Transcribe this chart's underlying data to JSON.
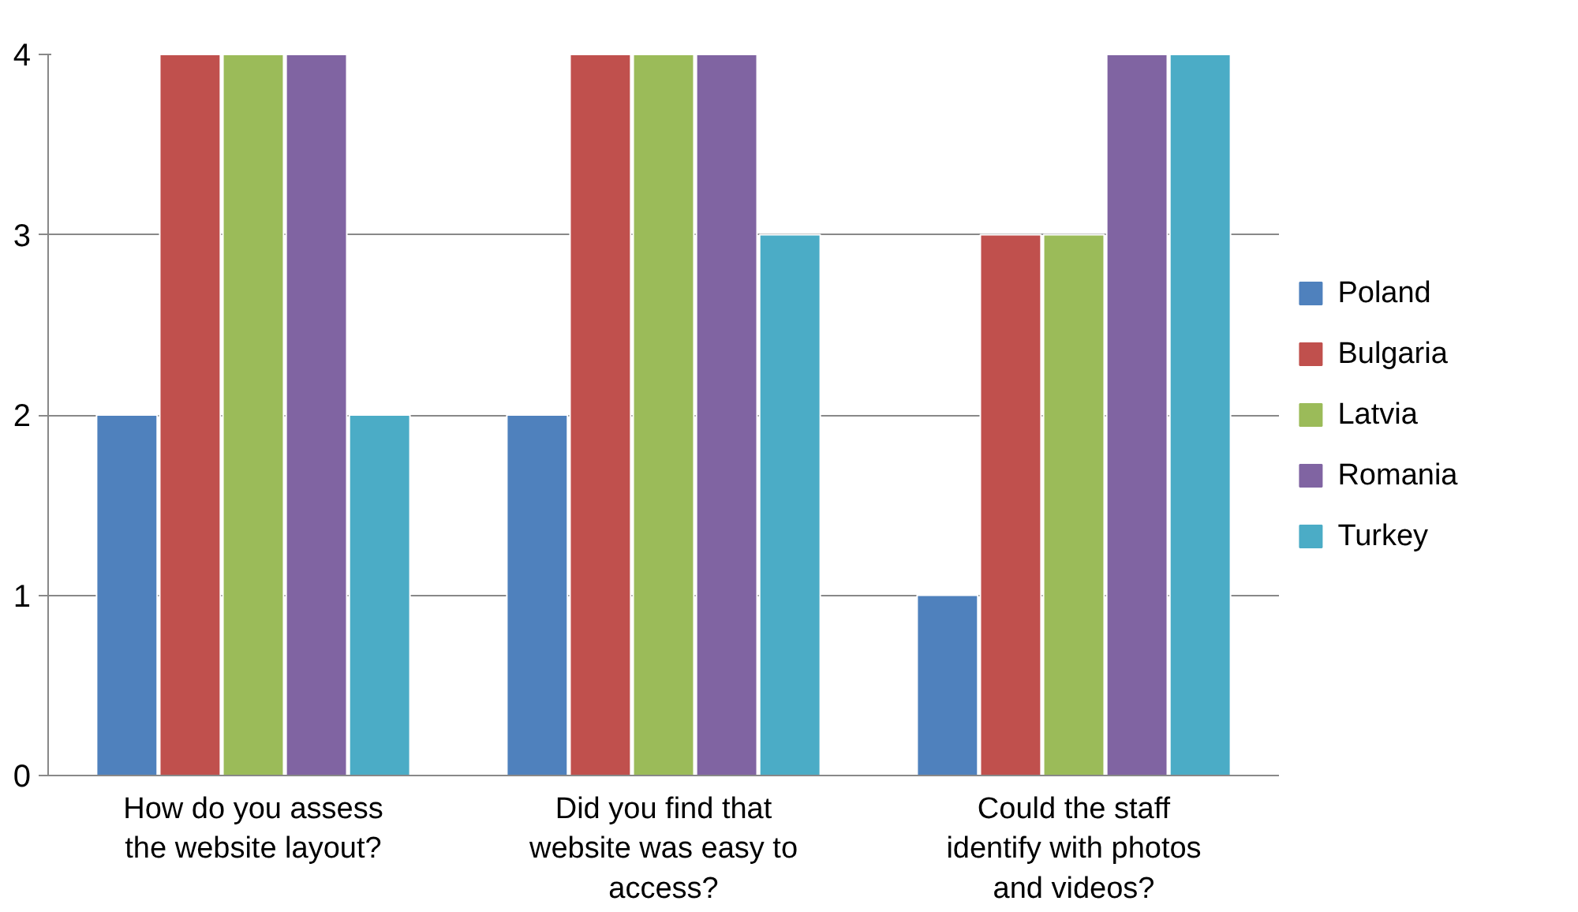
{
  "chart_data": {
    "type": "bar",
    "categories": [
      "How do you assess the website layout?",
      "Did you find that website was easy to access?",
      "Could the staff identify with photos and videos?"
    ],
    "series": [
      {
        "name": "Poland",
        "color": "#4f81bd",
        "values": [
          2,
          2,
          1
        ]
      },
      {
        "name": "Bulgaria",
        "color": "#c0504d",
        "values": [
          4,
          4,
          3
        ]
      },
      {
        "name": "Latvia",
        "color": "#9bbb59",
        "values": [
          4,
          4,
          3
        ]
      },
      {
        "name": "Romania",
        "color": "#8064a2",
        "values": [
          4,
          4,
          4
        ]
      },
      {
        "name": "Turkey",
        "color": "#4bacc6",
        "values": [
          2,
          3,
          4
        ]
      }
    ],
    "ylim": [
      0,
      4
    ],
    "yticks": [
      0,
      1,
      2,
      3,
      4
    ],
    "grid": "y",
    "legend": "right"
  }
}
